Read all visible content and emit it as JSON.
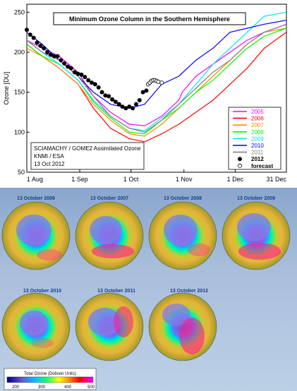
{
  "chart_data": {
    "type": "line",
    "title": "Minimum Ozone Column in the Southern Hemisphere",
    "ylabel": "Ozone [DU]",
    "xlabel": "",
    "ylim": [
      50,
      260
    ],
    "yticks": [
      "50",
      "100",
      "150",
      "200",
      "250"
    ],
    "xticks": [
      "1 Aug",
      "1 Sep",
      "1 Oct",
      "1 Nov",
      "1 Dec",
      "31 Dec"
    ],
    "grid": false,
    "legend_position": "bottom-right",
    "source_note": [
      "SCIAMACHY / GOME2 Assimilated Ozone",
      "KNMI / ESA",
      "13 Oct 2012"
    ],
    "series": [
      {
        "name": "2005",
        "color": "#ff00ff",
        "x": [
          1,
          10,
          20,
          31,
          40,
          50,
          61,
          70,
          80,
          90,
          92,
          100,
          110,
          120,
          130,
          140,
          153
        ],
        "y": [
          215,
          205,
          195,
          175,
          145,
          125,
          110,
          108,
          120,
          140,
          150,
          170,
          185,
          200,
          215,
          225,
          235
        ]
      },
      {
        "name": "2006",
        "color": "#ff0000",
        "x": [
          1,
          10,
          20,
          31,
          40,
          50,
          61,
          70,
          80,
          90,
          100,
          110,
          120,
          130,
          140,
          153
        ],
        "y": [
          210,
          195,
          180,
          160,
          130,
          105,
          92,
          88,
          98,
          110,
          125,
          140,
          160,
          180,
          205,
          225
        ]
      },
      {
        "name": "2007",
        "color": "#ff8c00",
        "x": [
          1,
          10,
          20,
          31,
          40,
          50,
          61,
          70,
          80,
          90,
          100,
          110,
          120,
          130,
          140,
          153
        ],
        "y": [
          205,
          195,
          180,
          160,
          135,
          115,
          98,
          95,
          110,
          130,
          150,
          170,
          190,
          210,
          225,
          230
        ]
      },
      {
        "name": "2008",
        "color": "#00ff00",
        "x": [
          1,
          10,
          20,
          31,
          40,
          50,
          61,
          70,
          80,
          90,
          100,
          110,
          120,
          130,
          140,
          153
        ],
        "y": [
          210,
          195,
          185,
          165,
          138,
          118,
          100,
          98,
          115,
          130,
          150,
          165,
          185,
          205,
          220,
          230
        ]
      },
      {
        "name": "2009",
        "color": "#00e5ee",
        "x": [
          1,
          10,
          20,
          31,
          40,
          50,
          61,
          70,
          80,
          90,
          100,
          110,
          120,
          130,
          140,
          153
        ],
        "y": [
          215,
          200,
          185,
          165,
          140,
          120,
          105,
          102,
          118,
          135,
          160,
          185,
          205,
          225,
          245,
          250
        ]
      },
      {
        "name": "2010",
        "color": "#0000ff",
        "x": [
          1,
          10,
          20,
          31,
          40,
          50,
          61,
          70,
          80,
          90,
          100,
          110,
          120,
          130,
          140,
          153
        ],
        "y": [
          225,
          210,
          190,
          170,
          150,
          135,
          130,
          135,
          160,
          170,
          190,
          205,
          225,
          230,
          235,
          240
        ]
      },
      {
        "name": "2011",
        "color": "#808080",
        "x": [
          1,
          10,
          20,
          31,
          40,
          50,
          61,
          70,
          80,
          90,
          100,
          110,
          120,
          130,
          140,
          153
        ],
        "y": [
          215,
          200,
          190,
          170,
          145,
          120,
          105,
          100,
          115,
          135,
          155,
          175,
          190,
          210,
          225,
          235
        ]
      },
      {
        "name": "2012",
        "color": "#000000",
        "marker": "filled-circle",
        "x": [
          1,
          3,
          5,
          7,
          9,
          11,
          13,
          15,
          17,
          19,
          21,
          23,
          25,
          27,
          29,
          31,
          33,
          35,
          37,
          39,
          41,
          43,
          45,
          47,
          49,
          51,
          53,
          55,
          57,
          59,
          61,
          63,
          65,
          67,
          69,
          71
        ],
        "y": [
          228,
          222,
          218,
          212,
          208,
          205,
          200,
          197,
          195,
          195,
          190,
          186,
          182,
          180,
          175,
          173,
          172,
          169,
          165,
          162,
          160,
          156,
          150,
          146,
          145,
          141,
          138,
          135,
          132,
          130,
          132,
          130,
          135,
          140,
          150,
          152
        ]
      },
      {
        "name": "forecast",
        "color": "#000000",
        "marker": "open-circle",
        "x": [
          72,
          73,
          74,
          75,
          76,
          77,
          78,
          80
        ],
        "y": [
          160,
          162,
          164,
          165,
          165,
          164,
          163,
          162
        ]
      }
    ]
  },
  "maps": {
    "titles": [
      "13 October 2006",
      "13 October 2007",
      "13 October 2008",
      "13 October 2009",
      "13 October 2010",
      "13 October 2011",
      "13 October 2012"
    ],
    "colorbar": {
      "title": "Total Ozone (Dobson Units)",
      "ticks": [
        "200",
        "300",
        "400",
        "500"
      ]
    }
  }
}
